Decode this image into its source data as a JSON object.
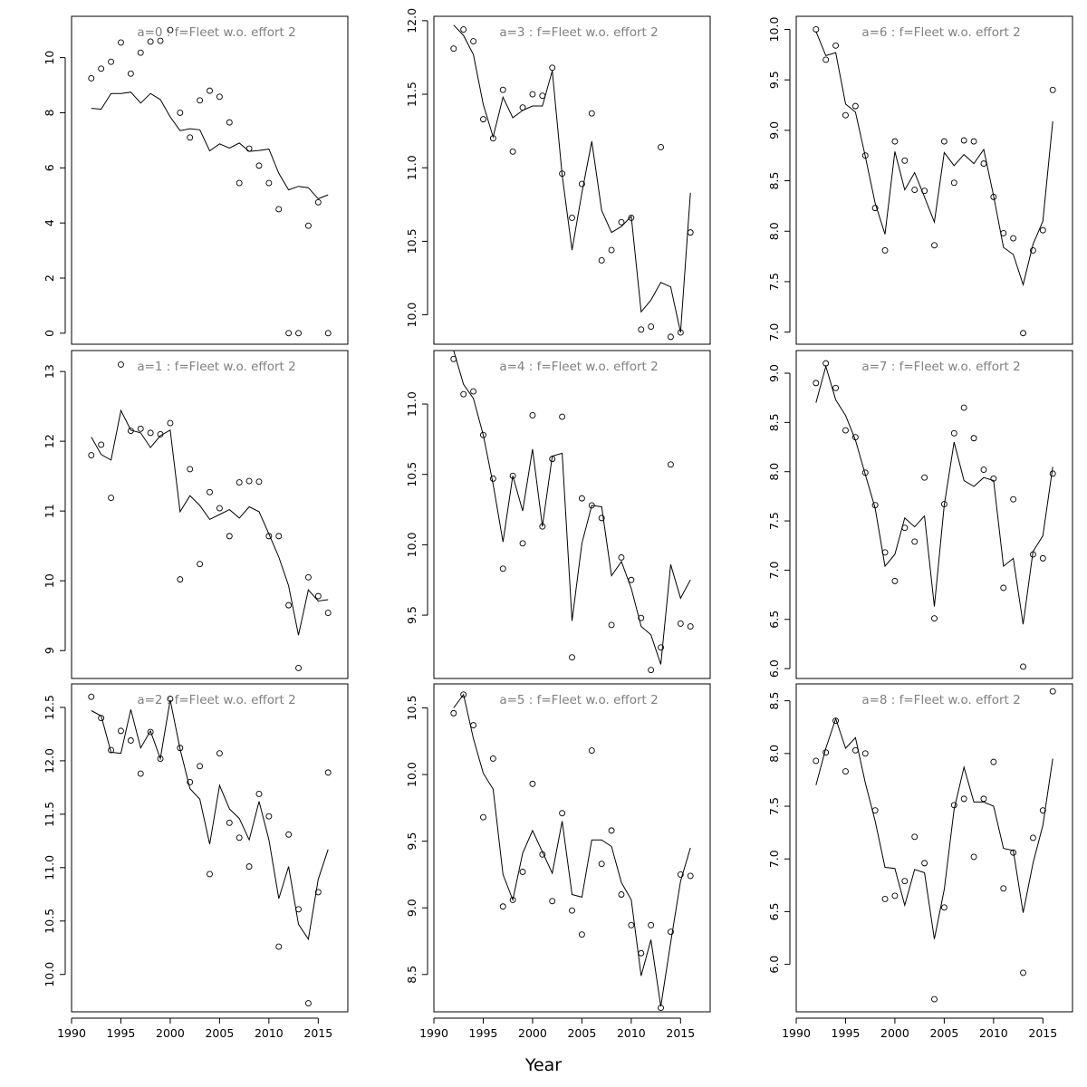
{
  "xlabel": "Year",
  "chart_data": [
    {
      "type": "scatter",
      "title": "a=0  :  f=Fleet w.o. effort 2",
      "xlim": [
        1990,
        2018
      ],
      "ylim": [
        -0.4,
        11.5
      ],
      "yticks": [
        0,
        2,
        4,
        6,
        8,
        10
      ],
      "years": [
        1992,
        1993,
        1994,
        1995,
        1996,
        1997,
        1998,
        1999,
        2000,
        2001,
        2002,
        2003,
        2004,
        2005,
        2006,
        2007,
        2008,
        2009,
        2010,
        2011,
        2012,
        2013,
        2014,
        2015,
        2016
      ],
      "series": [
        {
          "name": "observed",
          "values": [
            9.25,
            9.6,
            9.85,
            10.55,
            9.42,
            10.18,
            10.58,
            10.61,
            11.0,
            8.0,
            7.1,
            8.45,
            8.8,
            8.58,
            7.65,
            5.45,
            6.7,
            6.08,
            5.45,
            4.5,
            0.0,
            0.0,
            3.9,
            4.75,
            0.0
          ]
        },
        {
          "name": "fitted",
          "values": [
            8.16,
            8.13,
            8.7,
            8.7,
            8.75,
            8.35,
            8.7,
            8.48,
            7.85,
            7.35,
            7.42,
            7.38,
            6.62,
            6.87,
            6.72,
            6.9,
            6.6,
            6.63,
            6.68,
            5.8,
            5.2,
            5.33,
            5.28,
            4.88,
            5.02
          ]
        }
      ]
    },
    {
      "type": "scatter",
      "title": "a=1  :  f=Fleet w.o. effort 2",
      "xlim": [
        1990,
        2018
      ],
      "ylim": [
        8.6,
        13.3
      ],
      "yticks": [
        9,
        10,
        11,
        12,
        13
      ],
      "years": [
        1992,
        1993,
        1994,
        1995,
        1996,
        1997,
        1998,
        1999,
        2000,
        2001,
        2002,
        2003,
        2004,
        2005,
        2006,
        2007,
        2008,
        2009,
        2010,
        2011,
        2012,
        2013,
        2014,
        2015,
        2016
      ],
      "series": [
        {
          "name": "observed",
          "values": [
            11.8,
            11.95,
            11.19,
            13.1,
            12.15,
            12.18,
            12.12,
            12.1,
            12.26,
            10.02,
            11.6,
            10.24,
            11.27,
            11.04,
            10.64,
            11.41,
            11.43,
            11.42,
            10.64,
            10.64,
            9.65,
            8.75,
            10.05,
            9.78,
            9.54
          ]
        },
        {
          "name": "fitted",
          "values": [
            12.06,
            11.81,
            11.73,
            12.44,
            12.16,
            12.12,
            11.91,
            12.08,
            12.16,
            10.99,
            11.22,
            11.08,
            10.88,
            10.95,
            11.02,
            10.9,
            11.06,
            10.99,
            10.67,
            10.34,
            9.93,
            9.22,
            9.87,
            9.71,
            9.73
          ]
        }
      ]
    },
    {
      "type": "scatter",
      "title": "a=2  :  f=Fleet w.o. effort 2",
      "xlim": [
        1990,
        2018
      ],
      "ylim": [
        9.65,
        12.72
      ],
      "yticks": [
        10.0,
        10.5,
        11.0,
        11.5,
        12.0,
        12.5
      ],
      "years": [
        1992,
        1993,
        1994,
        1995,
        1996,
        1997,
        1998,
        1999,
        2000,
        2001,
        2002,
        2003,
        2004,
        2005,
        2006,
        2007,
        2008,
        2009,
        2010,
        2011,
        2012,
        2013,
        2014,
        2015,
        2016
      ],
      "series": [
        {
          "name": "observed",
          "values": [
            12.6,
            12.4,
            12.1,
            12.28,
            12.19,
            11.88,
            12.27,
            12.02,
            12.58,
            12.12,
            11.8,
            11.95,
            10.94,
            12.07,
            11.42,
            11.28,
            11.01,
            11.69,
            11.48,
            10.26,
            11.31,
            10.61,
            9.73,
            10.77,
            11.89
          ]
        },
        {
          "name": "fitted",
          "values": [
            12.47,
            12.42,
            12.08,
            12.07,
            12.48,
            12.12,
            12.28,
            12.02,
            12.57,
            12.11,
            11.74,
            11.64,
            11.22,
            11.77,
            11.55,
            11.46,
            11.26,
            11.62,
            11.26,
            10.71,
            11.01,
            10.47,
            10.33,
            10.89,
            11.17
          ]
        }
      ]
    },
    {
      "type": "scatter",
      "title": "a=3  :  f=Fleet w.o. effort 2",
      "xlim": [
        1990,
        2018
      ],
      "ylim": [
        9.8,
        12.03
      ],
      "yticks": [
        10.0,
        10.5,
        11.0,
        11.5,
        12.0
      ],
      "years": [
        1992,
        1993,
        1994,
        1995,
        1996,
        1997,
        1998,
        1999,
        2000,
        2001,
        2002,
        2003,
        2004,
        2005,
        2006,
        2007,
        2008,
        2009,
        2010,
        2011,
        2012,
        2013,
        2014,
        2015,
        2016
      ],
      "series": [
        {
          "name": "observed",
          "values": [
            11.81,
            11.94,
            11.86,
            11.33,
            11.2,
            11.53,
            11.11,
            11.41,
            11.5,
            11.49,
            11.68,
            10.96,
            10.66,
            10.89,
            11.37,
            10.37,
            10.44,
            10.63,
            10.66,
            9.9,
            9.92,
            11.14,
            9.85,
            9.88,
            10.56
          ]
        },
        {
          "name": "fitted",
          "values": [
            11.97,
            11.9,
            11.77,
            11.43,
            11.21,
            11.48,
            11.34,
            11.39,
            11.42,
            11.42,
            11.66,
            10.95,
            10.44,
            10.83,
            11.18,
            10.71,
            10.56,
            10.6,
            10.67,
            10.02,
            10.1,
            10.22,
            10.19,
            9.88,
            10.83
          ]
        }
      ]
    },
    {
      "type": "scatter",
      "title": "a=4  :  f=Fleet w.o. effort 2",
      "xlim": [
        1990,
        2018
      ],
      "ylim": [
        9.05,
        11.38
      ],
      "yticks": [
        9.5,
        10.0,
        10.5,
        11.0
      ],
      "years": [
        1992,
        1993,
        1994,
        1995,
        1996,
        1997,
        1998,
        1999,
        2000,
        2001,
        2002,
        2003,
        2004,
        2005,
        2006,
        2007,
        2008,
        2009,
        2010,
        2011,
        2012,
        2013,
        2014,
        2015,
        2016
      ],
      "series": [
        {
          "name": "observed",
          "values": [
            11.32,
            11.07,
            11.09,
            10.78,
            10.47,
            9.83,
            10.49,
            10.01,
            10.92,
            10.13,
            10.61,
            10.91,
            9.2,
            10.33,
            10.28,
            10.19,
            9.43,
            9.91,
            9.75,
            9.48,
            9.11,
            9.27,
            10.57,
            9.44,
            9.42
          ]
        },
        {
          "name": "fitted",
          "values": [
            11.38,
            11.14,
            11.04,
            10.78,
            10.43,
            10.02,
            10.49,
            10.24,
            10.68,
            10.13,
            10.63,
            10.65,
            9.46,
            10.01,
            10.28,
            10.27,
            9.78,
            9.88,
            9.69,
            9.42,
            9.36,
            9.15,
            9.86,
            9.62,
            9.75
          ]
        }
      ]
    },
    {
      "type": "scatter",
      "title": "a=5  :  f=Fleet w.o. effort 2",
      "xlim": [
        1990,
        2018
      ],
      "ylim": [
        8.22,
        10.68
      ],
      "yticks": [
        8.5,
        9.0,
        9.5,
        10.0,
        10.5
      ],
      "years": [
        1992,
        1993,
        1994,
        1995,
        1996,
        1997,
        1998,
        1999,
        2000,
        2001,
        2002,
        2003,
        2004,
        2005,
        2006,
        2007,
        2008,
        2009,
        2010,
        2011,
        2012,
        2013,
        2014,
        2015,
        2016
      ],
      "series": [
        {
          "name": "observed",
          "values": [
            10.46,
            10.6,
            10.37,
            9.68,
            10.12,
            9.01,
            9.06,
            9.27,
            9.93,
            9.4,
            9.05,
            9.71,
            8.98,
            8.8,
            10.18,
            9.33,
            9.58,
            9.1,
            8.87,
            8.66,
            8.87,
            8.25,
            8.82,
            9.25,
            9.24
          ]
        },
        {
          "name": "fitted",
          "values": [
            10.5,
            10.6,
            10.27,
            10.01,
            9.89,
            9.25,
            9.06,
            9.41,
            9.58,
            9.42,
            9.26,
            9.65,
            9.1,
            9.08,
            9.51,
            9.51,
            9.46,
            9.19,
            9.06,
            8.49,
            8.76,
            8.26,
            8.74,
            9.2,
            9.45
          ]
        }
      ]
    },
    {
      "type": "scatter",
      "title": "a=6  :  f=Fleet w.o. effort 2",
      "xlim": [
        1990,
        2018
      ],
      "ylim": [
        6.88,
        10.13
      ],
      "yticks": [
        7.0,
        7.5,
        8.0,
        8.5,
        9.0,
        9.5,
        10.0
      ],
      "years": [
        1992,
        1993,
        1994,
        1995,
        1996,
        1997,
        1998,
        1999,
        2000,
        2001,
        2002,
        2003,
        2004,
        2005,
        2006,
        2007,
        2008,
        2009,
        2010,
        2011,
        2012,
        2013,
        2014,
        2015,
        2016
      ],
      "series": [
        {
          "name": "observed",
          "values": [
            10.0,
            9.7,
            9.84,
            9.15,
            9.24,
            8.75,
            8.23,
            7.81,
            8.89,
            8.7,
            8.41,
            8.4,
            7.86,
            8.89,
            8.48,
            8.9,
            8.89,
            8.67,
            8.34,
            7.98,
            7.93,
            6.99,
            7.81,
            8.01,
            9.4
          ]
        },
        {
          "name": "fitted",
          "values": [
            9.98,
            9.74,
            9.77,
            9.26,
            9.18,
            8.74,
            8.28,
            7.97,
            8.79,
            8.41,
            8.58,
            8.34,
            8.09,
            8.78,
            8.65,
            8.76,
            8.67,
            8.81,
            8.35,
            7.84,
            7.77,
            7.47,
            7.87,
            8.1,
            9.09
          ]
        }
      ]
    },
    {
      "type": "scatter",
      "title": "a=7  :  f=Fleet w.o. effort 2",
      "xlim": [
        1990,
        2018
      ],
      "ylim": [
        5.9,
        9.23
      ],
      "yticks": [
        6.0,
        6.5,
        7.0,
        7.5,
        8.0,
        8.5,
        9.0
      ],
      "years": [
        1992,
        1993,
        1994,
        1995,
        1996,
        1997,
        1998,
        1999,
        2000,
        2001,
        2002,
        2003,
        2004,
        2005,
        2006,
        2007,
        2008,
        2009,
        2010,
        2011,
        2012,
        2013,
        2014,
        2015,
        2016
      ],
      "series": [
        {
          "name": "observed",
          "values": [
            8.9,
            9.1,
            8.85,
            8.42,
            8.35,
            7.99,
            7.66,
            7.18,
            6.89,
            7.43,
            7.29,
            7.94,
            6.51,
            7.67,
            8.39,
            8.65,
            8.34,
            8.02,
            7.93,
            6.82,
            7.72,
            6.02,
            7.16,
            7.12,
            7.98
          ]
        },
        {
          "name": "fitted",
          "values": [
            8.7,
            9.07,
            8.73,
            8.57,
            8.32,
            7.97,
            7.63,
            7.04,
            7.16,
            7.53,
            7.44,
            7.55,
            6.63,
            7.66,
            8.3,
            7.91,
            7.85,
            7.94,
            7.91,
            7.04,
            7.12,
            6.45,
            7.19,
            7.35,
            8.05
          ]
        }
      ]
    },
    {
      "type": "scatter",
      "title": "a=8  :  f=Fleet w.o. effort 2",
      "xlim": [
        1990,
        2018
      ],
      "ylim": [
        5.55,
        8.66
      ],
      "yticks": [
        6.0,
        6.5,
        7.0,
        7.5,
        8.0,
        8.5
      ],
      "years": [
        1992,
        1993,
        1994,
        1995,
        1996,
        1997,
        1998,
        1999,
        2000,
        2001,
        2002,
        2003,
        2004,
        2005,
        2006,
        2007,
        2008,
        2009,
        2010,
        2011,
        2012,
        2013,
        2014,
        2015,
        2016
      ],
      "series": [
        {
          "name": "observed",
          "values": [
            7.93,
            8.01,
            8.31,
            7.83,
            8.03,
            8.0,
            7.46,
            6.62,
            6.65,
            6.79,
            7.21,
            6.96,
            5.67,
            6.54,
            7.51,
            7.57,
            7.02,
            7.57,
            7.92,
            6.72,
            7.06,
            5.92,
            7.2,
            7.46,
            8.59
          ]
        },
        {
          "name": "fitted",
          "values": [
            7.7,
            8.05,
            8.33,
            8.05,
            8.15,
            7.72,
            7.36,
            6.92,
            6.91,
            6.56,
            6.9,
            6.87,
            6.24,
            6.71,
            7.47,
            7.87,
            7.54,
            7.54,
            7.5,
            7.1,
            7.08,
            6.49,
            6.96,
            7.32,
            7.95
          ]
        }
      ]
    }
  ]
}
